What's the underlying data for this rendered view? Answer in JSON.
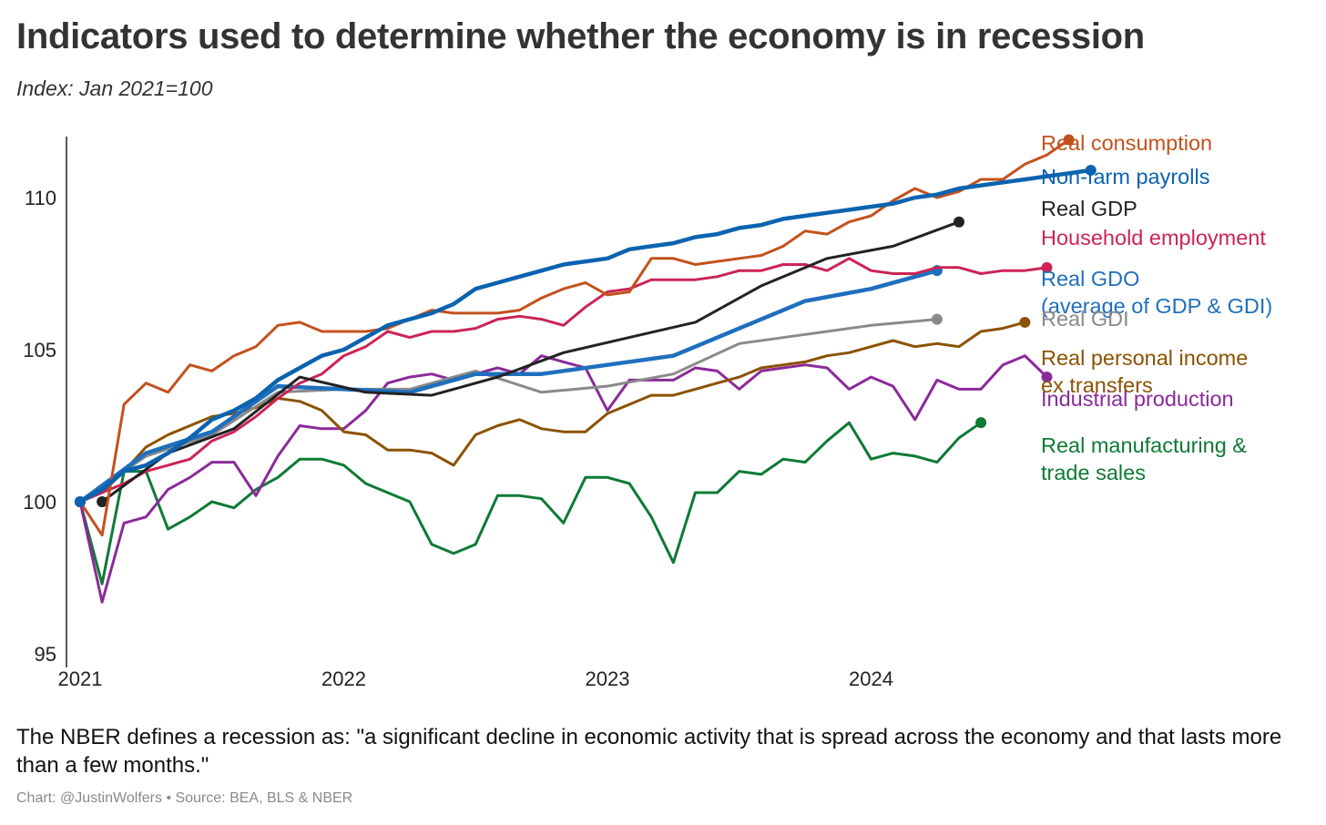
{
  "title": "Indicators used to determine whether the economy is in recession",
  "subtitle": "Index: Jan 2021=100",
  "note": "The NBER defines a recession as: \"a significant decline in economic activity that is spread across the economy and that lasts more than a few months.\"",
  "credit": "Chart: @JustinWolfers • Source: BEA, BLS & NBER",
  "chart_data": {
    "type": "line",
    "ylim": [
      95,
      112
    ],
    "yticks": [
      95,
      100,
      105,
      110
    ],
    "xlim": [
      2021.0,
      2024.95
    ],
    "xticks": [
      "2021",
      "2022",
      "2023",
      "2024"
    ],
    "grid": false,
    "legend": "right (direct labels at line ends)",
    "series": [
      {
        "name": "Real consumption",
        "color": "#c4511d",
        "label_lines": [
          "Real consumption"
        ],
        "start": 2021.0,
        "step": 0.0833333,
        "values": [
          100.0,
          98.9,
          103.2,
          103.9,
          103.6,
          104.5,
          104.3,
          104.8,
          105.1,
          105.8,
          105.9,
          105.6,
          105.6,
          105.6,
          105.7,
          106.0,
          106.3,
          106.2,
          106.2,
          106.2,
          106.3,
          106.7,
          107.0,
          107.2,
          106.8,
          106.9,
          108.0,
          108.0,
          107.8,
          107.9,
          108.0,
          108.1,
          108.4,
          108.9,
          108.8,
          109.2,
          109.4,
          109.9,
          110.3,
          110.0,
          110.2,
          110.6,
          110.6,
          111.1,
          111.4,
          111.9
        ]
      },
      {
        "name": "Non-farm payrolls",
        "color": "#0b63b0",
        "label_lines": [
          "Non-farm payrolls"
        ],
        "start": 2021.0,
        "step": 0.0833333,
        "values": [
          100.0,
          100.4,
          101.0,
          101.2,
          101.6,
          102.1,
          102.7,
          103.0,
          103.4,
          104.0,
          104.4,
          104.8,
          105.0,
          105.4,
          105.8,
          106.0,
          106.2,
          106.5,
          107.0,
          107.2,
          107.4,
          107.6,
          107.8,
          107.9,
          108.0,
          108.3,
          108.4,
          108.5,
          108.7,
          108.8,
          109.0,
          109.1,
          109.3,
          109.4,
          109.5,
          109.6,
          109.7,
          109.8,
          110.0,
          110.1,
          110.3,
          110.4,
          110.5,
          110.6,
          110.7,
          110.8,
          110.9
        ]
      },
      {
        "name": "Real GDP",
        "color": "#222222",
        "label_lines": [
          "Real GDP"
        ],
        "start": 2021.0833,
        "step": 0.25,
        "values": [
          100.0,
          101.6,
          102.4,
          104.1,
          103.6,
          103.5,
          104.1,
          104.9,
          105.4,
          105.9,
          107.1,
          108.0,
          108.4,
          109.2
        ]
      },
      {
        "name": "Household employment",
        "color": "#cc2455",
        "label_lines": [
          "Household employment"
        ],
        "start": 2021.0,
        "step": 0.0833333,
        "values": [
          100.0,
          100.3,
          100.6,
          101.0,
          101.2,
          101.4,
          102.0,
          102.3,
          102.8,
          103.4,
          103.9,
          104.2,
          104.8,
          105.1,
          105.6,
          105.4,
          105.6,
          105.6,
          105.7,
          106.0,
          106.1,
          106.0,
          105.8,
          106.4,
          106.9,
          107.0,
          107.3,
          107.3,
          107.3,
          107.4,
          107.6,
          107.6,
          107.8,
          107.8,
          107.6,
          108.0,
          107.6,
          107.5,
          107.5,
          107.7,
          107.7,
          107.5,
          107.6,
          107.6,
          107.7
        ]
      },
      {
        "name": "Real GDO",
        "color": "#1f6fbd",
        "label_lines": [
          "Real GDO",
          "(average of GDP & GDI)"
        ],
        "start": 2021.0,
        "step": 0.25,
        "values": [
          100.0,
          101.6,
          102.3,
          103.8,
          103.7,
          103.6,
          104.2,
          104.2,
          104.5,
          104.8,
          105.7,
          106.6,
          107.0,
          107.6
        ]
      },
      {
        "name": "Real GDI",
        "color": "#8a8a8a",
        "label_lines": [
          "Real GDI"
        ],
        "start": 2021.0,
        "step": 0.25,
        "values": [
          100.0,
          101.5,
          102.2,
          103.6,
          103.7,
          103.7,
          104.3,
          103.6,
          103.8,
          104.2,
          105.2,
          105.5,
          105.8,
          106.0
        ]
      },
      {
        "name": "Real personal income ex transfers",
        "color": "#8b5200",
        "label_lines": [
          "Real personal income",
          "ex transfers"
        ],
        "start": 2021.0,
        "step": 0.0833333,
        "values": [
          100.0,
          100.3,
          101.0,
          101.8,
          102.2,
          102.5,
          102.8,
          102.9,
          103.1,
          103.4,
          103.3,
          103.0,
          102.3,
          102.2,
          101.7,
          101.7,
          101.6,
          101.2,
          102.2,
          102.5,
          102.7,
          102.4,
          102.3,
          102.3,
          102.9,
          103.2,
          103.5,
          103.5,
          103.7,
          103.9,
          104.1,
          104.4,
          104.5,
          104.6,
          104.8,
          104.9,
          105.1,
          105.3,
          105.1,
          105.2,
          105.1,
          105.6,
          105.7,
          105.9
        ]
      },
      {
        "name": "Industrial production",
        "color": "#8a2a99",
        "label_lines": [
          "Industrial production"
        ],
        "start": 2021.0,
        "step": 0.0833333,
        "values": [
          100.0,
          96.7,
          99.3,
          99.5,
          100.4,
          100.8,
          101.3,
          101.3,
          100.2,
          101.5,
          102.5,
          102.4,
          102.4,
          103.0,
          103.9,
          104.1,
          104.2,
          104.0,
          104.2,
          104.4,
          104.2,
          104.8,
          104.6,
          104.4,
          103.0,
          104.0,
          104.0,
          104.0,
          104.4,
          104.3,
          103.7,
          104.3,
          104.4,
          104.5,
          104.4,
          103.7,
          104.1,
          103.8,
          102.7,
          104.0,
          103.7,
          103.7,
          104.5,
          104.8,
          104.1
        ]
      },
      {
        "name": "Real manufacturing & trade sales",
        "color": "#0e7a35",
        "label_lines": [
          "Real manufacturing &",
          "trade sales"
        ],
        "start": 2021.0,
        "step": 0.0833333,
        "values": [
          100.0,
          97.3,
          101.0,
          101.0,
          99.1,
          99.5,
          100.0,
          99.8,
          100.4,
          100.8,
          101.4,
          101.4,
          101.2,
          100.6,
          100.3,
          100.0,
          98.6,
          98.3,
          98.6,
          100.2,
          100.2,
          100.1,
          99.3,
          100.8,
          100.8,
          100.6,
          99.5,
          98.0,
          100.3,
          100.3,
          101.0,
          100.9,
          101.4,
          101.3,
          102.0,
          102.6,
          101.4,
          101.6,
          101.5,
          101.3,
          102.1,
          102.6
        ]
      }
    ]
  }
}
